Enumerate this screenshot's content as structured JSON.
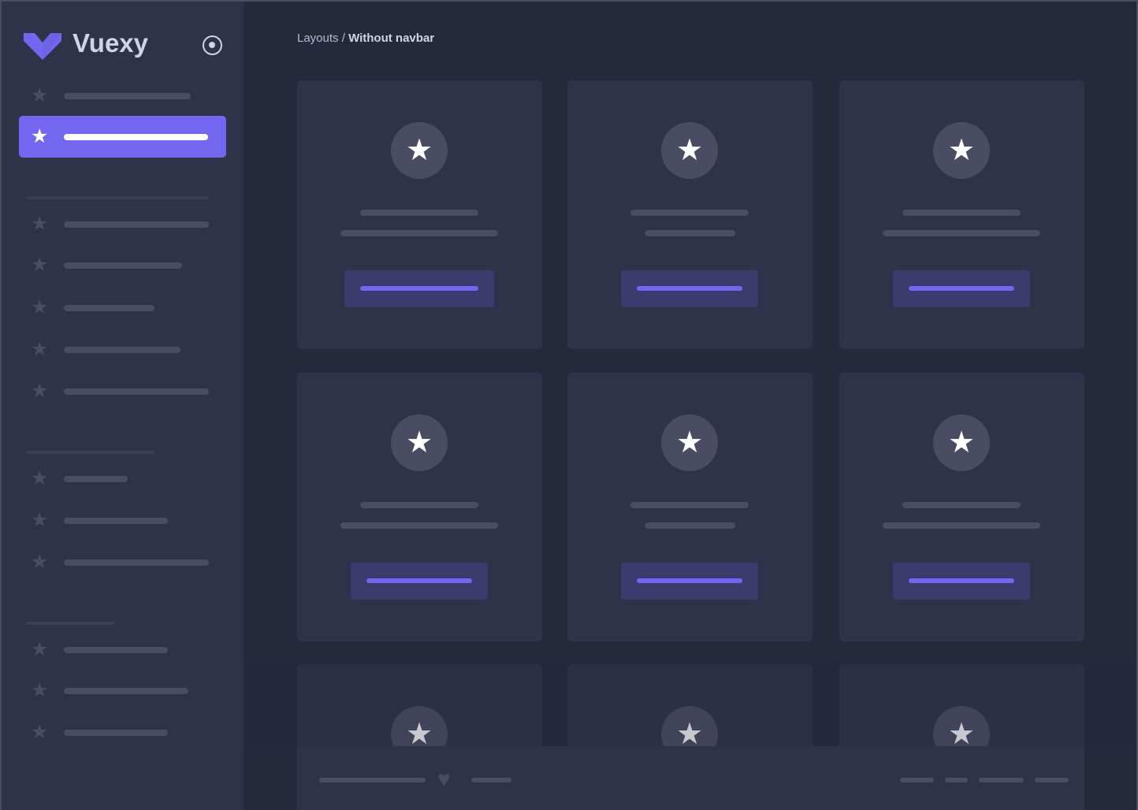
{
  "sidebar": {
    "brand": "Vuexy",
    "logo_color": "#7367f0",
    "active_item_index": 1,
    "item_icon": "star-icon",
    "pin_icon": "radio-circle-icon"
  },
  "breadcrumb": {
    "parent": "Layouts",
    "separator": " / ",
    "current": "Without navbar"
  },
  "cards": {
    "count": 9,
    "icon": "star-icon"
  },
  "footer": {
    "icon": "heart-icon"
  },
  "colors": {
    "accent": "#7367f0",
    "background": "#25293c",
    "surface": "#2f3349"
  }
}
